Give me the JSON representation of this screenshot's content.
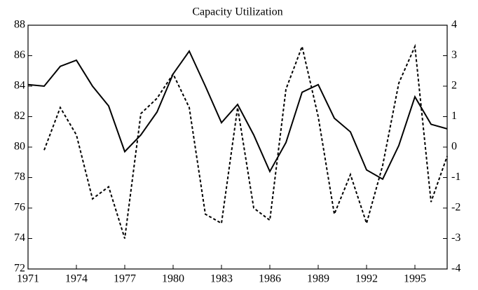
{
  "chart_data": {
    "type": "line",
    "title": "Capacity Utilization",
    "x": [
      1971,
      1972,
      1973,
      1974,
      1975,
      1976,
      1977,
      1978,
      1979,
      1980,
      1981,
      1982,
      1983,
      1984,
      1985,
      1986,
      1987,
      1988,
      1989,
      1990,
      1991,
      1992,
      1993,
      1994,
      1995,
      1996,
      1997
    ],
    "xlim": [
      1971,
      1997
    ],
    "xticks": [
      1971,
      1974,
      1977,
      1980,
      1983,
      1986,
      1989,
      1992,
      1995
    ],
    "ylim": [
      72,
      88
    ],
    "yticks": [
      72,
      74,
      76,
      78,
      80,
      82,
      84,
      86,
      88
    ],
    "y2lim": [
      -4,
      4
    ],
    "y2ticks": [
      -4,
      -3,
      -2,
      -1,
      0,
      1,
      2,
      3,
      4
    ],
    "series": [
      {
        "color": "#000000",
        "dash": "solid",
        "values": [
          84.1,
          84.0,
          85.3,
          85.7,
          84.0,
          82.7,
          79.7,
          80.8,
          82.3,
          84.8,
          86.3,
          84.0,
          81.6,
          82.8,
          80.8,
          78.4,
          80.3,
          83.6,
          84.1,
          81.9,
          81.0,
          78.5,
          77.9,
          80.1,
          83.3,
          81.5,
          81.2
        ]
      },
      {
        "color": "#000000",
        "dash": "dashed",
        "axis": "y2",
        "values": [
          null,
          -0.1,
          1.3,
          0.4,
          -1.7,
          -1.3,
          -3.0,
          1.1,
          1.6,
          2.4,
          1.3,
          -2.2,
          -2.5,
          1.3,
          -2.0,
          -2.4,
          1.9,
          3.3,
          1.0,
          -2.2,
          -0.9,
          -2.5,
          -0.6,
          2.1,
          3.3,
          -1.8,
          -0.3
        ]
      }
    ]
  }
}
